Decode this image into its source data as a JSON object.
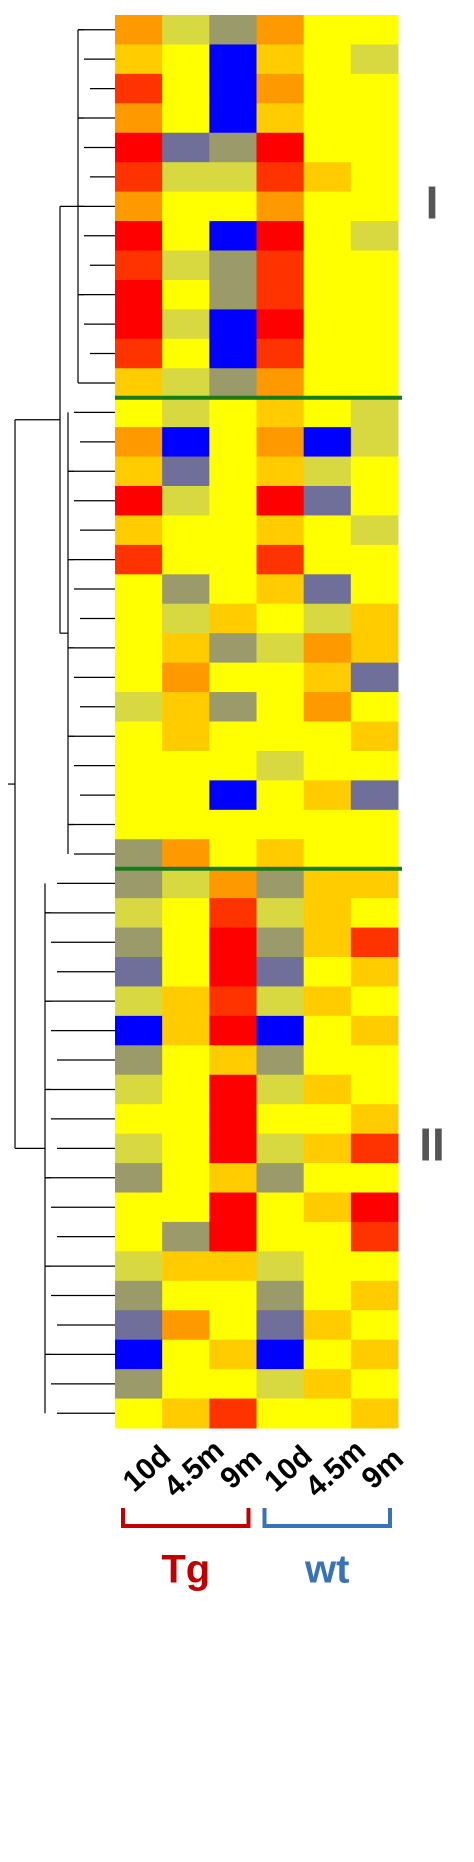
{
  "chart_data": {
    "type": "heatmap",
    "columns": [
      "10d",
      "4.5m",
      "9m",
      "10d",
      "4.5m",
      "9m"
    ],
    "groups": [
      {
        "label": "Tg",
        "color": "#c00000"
      },
      {
        "label": "wt",
        "color": "#3a72b8"
      }
    ],
    "divider_color": "#1a7a1a",
    "blocks": [
      {
        "label": "I",
        "rows": [
          [
            "#ff9900",
            "#d8d840",
            "#9a9a6a",
            "#ff9900",
            "#ffff00",
            "#ffff00"
          ],
          [
            "#ffcc00",
            "#ffff00",
            "#0000ff",
            "#ffcc00",
            "#ffff00",
            "#d8d840"
          ],
          [
            "#ff3300",
            "#ffff00",
            "#0000ff",
            "#ff9900",
            "#ffff00",
            "#ffff00"
          ],
          [
            "#ff9900",
            "#ffff00",
            "#0000ff",
            "#ffcc00",
            "#ffff00",
            "#ffff00"
          ],
          [
            "#ff0000",
            "#6f6f99",
            "#9a9a6a",
            "#ff0000",
            "#ffff00",
            "#ffff00"
          ],
          [
            "#ff3300",
            "#d8d840",
            "#d8d840",
            "#ff3300",
            "#ffcc00",
            "#ffff00"
          ],
          [
            "#ff9900",
            "#ffff00",
            "#ffff00",
            "#ff9900",
            "#ffff00",
            "#ffff00"
          ],
          [
            "#ff0000",
            "#ffff00",
            "#0000ff",
            "#ff0000",
            "#ffff00",
            "#d8d840"
          ],
          [
            "#ff3300",
            "#d8d840",
            "#9a9a6a",
            "#ff3300",
            "#ffff00",
            "#ffff00"
          ],
          [
            "#ff0000",
            "#ffff00",
            "#9a9a6a",
            "#ff3300",
            "#ffff00",
            "#ffff00"
          ],
          [
            "#ff0000",
            "#d8d840",
            "#0000ff",
            "#ff0000",
            "#ffff00",
            "#ffff00"
          ],
          [
            "#ff3300",
            "#ffff00",
            "#0000ff",
            "#ff3300",
            "#ffff00",
            "#ffff00"
          ],
          [
            "#ffcc00",
            "#d8d840",
            "#9a9a6a",
            "#ff9900",
            "#ffff00",
            "#ffff00"
          ]
        ]
      },
      {
        "label": null,
        "rows": [
          [
            "#ffff00",
            "#d8d840",
            "#ffff00",
            "#ffcc00",
            "#ffff00",
            "#d8d840"
          ],
          [
            "#ff9900",
            "#0000ff",
            "#ffff00",
            "#ff9900",
            "#0000ff",
            "#d8d840"
          ],
          [
            "#ffcc00",
            "#6f6f99",
            "#ffff00",
            "#ffcc00",
            "#d8d840",
            "#ffff00"
          ],
          [
            "#ff0000",
            "#d8d840",
            "#ffff00",
            "#ff0000",
            "#6f6f99",
            "#ffff00"
          ],
          [
            "#ffcc00",
            "#ffff00",
            "#ffff00",
            "#ffcc00",
            "#ffff00",
            "#d8d840"
          ],
          [
            "#ff3300",
            "#ffff00",
            "#ffff00",
            "#ff3300",
            "#ffff00",
            "#ffff00"
          ],
          [
            "#ffff00",
            "#9a9a6a",
            "#ffff00",
            "#ffcc00",
            "#6f6f99",
            "#ffff00"
          ],
          [
            "#ffff00",
            "#d8d840",
            "#ffcc00",
            "#ffff00",
            "#d8d840",
            "#ffcc00"
          ],
          [
            "#ffff00",
            "#ffcc00",
            "#9a9a6a",
            "#d8d840",
            "#ff9900",
            "#ffcc00"
          ],
          [
            "#ffff00",
            "#ff9900",
            "#ffff00",
            "#ffff00",
            "#ffcc00",
            "#6f6f99"
          ],
          [
            "#d8d840",
            "#ffcc00",
            "#9a9a6a",
            "#ffff00",
            "#ff9900",
            "#ffff00"
          ],
          [
            "#ffff00",
            "#ffcc00",
            "#ffff00",
            "#ffff00",
            "#ffff00",
            "#ffcc00"
          ],
          [
            "#ffff00",
            "#ffff00",
            "#ffff00",
            "#d8d840",
            "#ffff00",
            "#ffff00"
          ],
          [
            "#ffff00",
            "#ffff00",
            "#0000ff",
            "#ffff00",
            "#ffcc00",
            "#6f6f99"
          ],
          [
            "#ffff00",
            "#ffff00",
            "#ffff00",
            "#ffff00",
            "#ffff00",
            "#ffff00"
          ],
          [
            "#9a9a6a",
            "#ff9900",
            "#ffff00",
            "#ffcc00",
            "#ffff00",
            "#ffff00"
          ]
        ]
      },
      {
        "label": "II",
        "rows": [
          [
            "#9a9a6a",
            "#d8d840",
            "#ff9900",
            "#9a9a6a",
            "#ffcc00",
            "#ffcc00"
          ],
          [
            "#d8d840",
            "#ffff00",
            "#ff3300",
            "#d8d840",
            "#ffcc00",
            "#ffff00"
          ],
          [
            "#9a9a6a",
            "#ffff00",
            "#ff0000",
            "#9a9a6a",
            "#ffcc00",
            "#ff3300"
          ],
          [
            "#6f6f99",
            "#ffff00",
            "#ff0000",
            "#6f6f99",
            "#ffff00",
            "#ffcc00"
          ],
          [
            "#d8d840",
            "#ffcc00",
            "#ff3300",
            "#d8d840",
            "#ffcc00",
            "#ffff00"
          ],
          [
            "#0000ff",
            "#ffcc00",
            "#ff0000",
            "#0000ff",
            "#ffff00",
            "#ffcc00"
          ],
          [
            "#9a9a6a",
            "#ffff00",
            "#ffcc00",
            "#9a9a6a",
            "#ffff00",
            "#ffff00"
          ],
          [
            "#d8d840",
            "#ffff00",
            "#ff0000",
            "#d8d840",
            "#ffcc00",
            "#ffff00"
          ],
          [
            "#ffff00",
            "#ffff00",
            "#ff0000",
            "#ffff00",
            "#ffff00",
            "#ffcc00"
          ],
          [
            "#d8d840",
            "#ffff00",
            "#ff0000",
            "#d8d840",
            "#ffcc00",
            "#ff3300"
          ],
          [
            "#9a9a6a",
            "#ffff00",
            "#ffcc00",
            "#9a9a6a",
            "#ffff00",
            "#ffff00"
          ],
          [
            "#ffff00",
            "#ffff00",
            "#ff0000",
            "#ffff00",
            "#ffcc00",
            "#ff0000"
          ],
          [
            "#ffff00",
            "#9a9a6a",
            "#ff0000",
            "#ffff00",
            "#ffff00",
            "#ff3300"
          ],
          [
            "#d8d840",
            "#ffcc00",
            "#ffcc00",
            "#d8d840",
            "#ffff00",
            "#ffff00"
          ],
          [
            "#9a9a6a",
            "#ffff00",
            "#ffff00",
            "#9a9a6a",
            "#ffff00",
            "#ffcc00"
          ],
          [
            "#6f6f99",
            "#ff9900",
            "#ffff00",
            "#6f6f99",
            "#ffcc00",
            "#ffff00"
          ],
          [
            "#0000ff",
            "#ffff00",
            "#ffcc00",
            "#0000ff",
            "#ffff00",
            "#ffcc00"
          ],
          [
            "#9a9a6a",
            "#ffff00",
            "#ffff00",
            "#d8d840",
            "#ffcc00",
            "#ffff00"
          ],
          [
            "#ffff00",
            "#ffcc00",
            "#ff3300",
            "#ffff00",
            "#ffff00",
            "#ffcc00"
          ]
        ]
      }
    ]
  }
}
